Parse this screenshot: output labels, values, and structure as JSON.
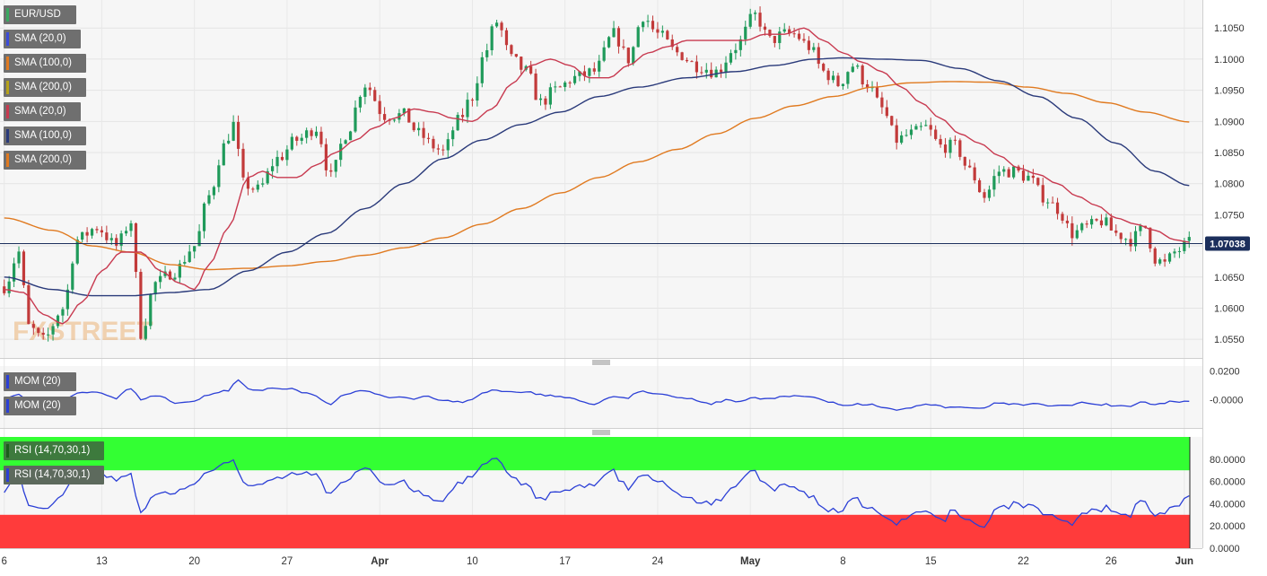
{
  "chart_data": {
    "type": "candlestick",
    "symbol": "EUR/USD",
    "indicators": [
      {
        "label": "SMA (20,0)",
        "color": "#3b4bd8"
      },
      {
        "label": "SMA (100,0)",
        "color": "#e07a20"
      },
      {
        "label": "SMA (200,0)",
        "color": "#b6a21a"
      },
      {
        "label": "SMA (20,0)",
        "color": "#c83a50"
      },
      {
        "label": "SMA (100,0)",
        "color": "#2a3a7a"
      },
      {
        "label": "SMA (200,0)",
        "color": "#e07a20"
      }
    ],
    "price_axis": {
      "ylim": [
        1.052,
        1.1095
      ],
      "ticks": [
        "1.1050",
        "1.1000",
        "1.0950",
        "1.0900",
        "1.0850",
        "1.0800",
        "1.0750",
        "1.0700",
        "1.0650",
        "1.0600",
        "1.0550"
      ]
    },
    "last_price": "1.07038",
    "last_price_value": 1.07038,
    "x_labels": [
      "6",
      "13",
      "20",
      "27",
      "Apr",
      "10",
      "17",
      "24",
      "May",
      "8",
      "15",
      "22",
      "26",
      "Jun"
    ],
    "watermark": "FXSTREET",
    "price_waypoints": [
      [
        0,
        1.0635
      ],
      [
        3,
        1.069
      ],
      [
        5,
        1.057
      ],
      [
        8,
        1.0548
      ],
      [
        12,
        1.06
      ],
      [
        15,
        1.071
      ],
      [
        19,
        1.073
      ],
      [
        23,
        1.07
      ],
      [
        26,
        1.074
      ],
      [
        28,
        1.056
      ],
      [
        31,
        1.064
      ],
      [
        35,
        1.066
      ],
      [
        39,
        1.07
      ],
      [
        42,
        1.078
      ],
      [
        45,
        1.086
      ],
      [
        47,
        1.0895
      ],
      [
        49,
        1.08
      ],
      [
        52,
        1.079
      ],
      [
        56,
        1.084
      ],
      [
        60,
        1.087
      ],
      [
        64,
        1.089
      ],
      [
        67,
        1.081
      ],
      [
        70,
        1.088
      ],
      [
        74,
        1.096
      ],
      [
        78,
        1.091
      ],
      [
        82,
        1.091
      ],
      [
        85,
        1.088
      ],
      [
        88,
        1.086
      ],
      [
        90,
        1.085
      ],
      [
        93,
        1.09
      ],
      [
        96,
        1.094
      ],
      [
        98,
        1.1
      ],
      [
        101,
        1.106
      ],
      [
        104,
        1.1
      ],
      [
        107,
        1.098
      ],
      [
        110,
        1.093
      ],
      [
        113,
        1.095
      ],
      [
        117,
        1.097
      ],
      [
        121,
        1.098
      ],
      [
        125,
        1.104
      ],
      [
        128,
        1.1
      ],
      [
        131,
        1.107
      ],
      [
        134,
        1.104
      ],
      [
        138,
        1.101
      ],
      [
        142,
        1.099
      ],
      [
        146,
        1.098
      ],
      [
        150,
        1.102
      ],
      [
        154,
        1.107
      ],
      [
        157,
        1.103
      ],
      [
        160,
        1.104
      ],
      [
        162,
        1.104
      ],
      [
        165,
        1.102
      ],
      [
        168,
        1.098
      ],
      [
        171,
        1.096
      ],
      [
        174,
        1.099
      ],
      [
        177,
        1.096
      ],
      [
        180,
        1.092
      ],
      [
        183,
        1.087
      ],
      [
        186,
        1.088
      ],
      [
        189,
        1.089
      ],
      [
        192,
        1.086
      ],
      [
        195,
        1.086
      ],
      [
        198,
        1.082
      ],
      [
        201,
        1.078
      ],
      [
        204,
        1.082
      ],
      [
        207,
        1.082
      ],
      [
        210,
        1.081
      ],
      [
        213,
        1.078
      ],
      [
        216,
        1.076
      ],
      [
        219,
        1.072
      ],
      [
        222,
        1.073
      ],
      [
        225,
        1.074
      ],
      [
        228,
        1.072
      ],
      [
        231,
        1.071
      ],
      [
        234,
        1.073
      ],
      [
        236,
        1.068
      ],
      [
        238,
        1.067
      ],
      [
        240,
        1.069
      ],
      [
        243,
        1.0704
      ]
    ],
    "sma20_waypoints": [
      [
        0,
        1.063
      ],
      [
        4,
        1.0625
      ],
      [
        8,
        1.059
      ],
      [
        12,
        1.0575
      ],
      [
        16,
        1.061
      ],
      [
        20,
        1.066
      ],
      [
        24,
        1.069
      ],
      [
        28,
        1.069
      ],
      [
        32,
        1.066
      ],
      [
        36,
        1.064
      ],
      [
        39,
        1.063
      ],
      [
        42,
        1.067
      ],
      [
        46,
        1.073
      ],
      [
        50,
        1.081
      ],
      [
        53,
        1.082
      ],
      [
        56,
        1.081
      ],
      [
        60,
        1.081
      ],
      [
        64,
        1.083
      ],
      [
        68,
        1.085
      ],
      [
        72,
        1.087
      ],
      [
        76,
        1.089
      ],
      [
        80,
        1.0905
      ],
      [
        84,
        1.092
      ],
      [
        88,
        1.0915
      ],
      [
        92,
        1.0905
      ],
      [
        96,
        1.09
      ],
      [
        100,
        1.092
      ],
      [
        104,
        1.096
      ],
      [
        108,
        1.099
      ],
      [
        112,
        1.1
      ],
      [
        116,
        1.099
      ],
      [
        120,
        1.097
      ],
      [
        124,
        1.097
      ],
      [
        128,
        1.099
      ],
      [
        132,
        1.101
      ],
      [
        136,
        1.102
      ],
      [
        140,
        1.103
      ],
      [
        144,
        1.103
      ],
      [
        148,
        1.103
      ],
      [
        152,
        1.103
      ],
      [
        156,
        1.104
      ],
      [
        160,
        1.104
      ],
      [
        164,
        1.105
      ],
      [
        168,
        1.103
      ],
      [
        172,
        1.101
      ],
      [
        176,
        1.0995
      ],
      [
        180,
        1.098
      ],
      [
        184,
        1.0955
      ],
      [
        188,
        1.093
      ],
      [
        192,
        1.0905
      ],
      [
        196,
        1.088
      ],
      [
        200,
        1.0865
      ],
      [
        204,
        1.0845
      ],
      [
        208,
        1.0825
      ],
      [
        212,
        1.0815
      ],
      [
        216,
        1.08
      ],
      [
        220,
        1.078
      ],
      [
        224,
        1.0765
      ],
      [
        228,
        1.0745
      ],
      [
        232,
        1.0735
      ],
      [
        236,
        1.0725
      ],
      [
        240,
        1.071
      ],
      [
        243,
        1.0706
      ]
    ],
    "sma100_waypoints": [
      [
        0,
        1.065
      ],
      [
        10,
        1.063
      ],
      [
        18,
        1.062
      ],
      [
        26,
        1.062
      ],
      [
        34,
        1.0625
      ],
      [
        42,
        1.063
      ],
      [
        50,
        1.066
      ],
      [
        58,
        1.069
      ],
      [
        66,
        1.072
      ],
      [
        74,
        1.076
      ],
      [
        82,
        1.08
      ],
      [
        90,
        1.084
      ],
      [
        98,
        1.087
      ],
      [
        106,
        1.0895
      ],
      [
        114,
        1.0915
      ],
      [
        122,
        1.094
      ],
      [
        130,
        1.0955
      ],
      [
        140,
        1.097
      ],
      [
        150,
        1.098
      ],
      [
        158,
        1.099
      ],
      [
        166,
        1.1
      ],
      [
        172,
        1.1002
      ],
      [
        180,
        1.1
      ],
      [
        188,
        1.0998
      ],
      [
        196,
        1.0985
      ],
      [
        204,
        1.0965
      ],
      [
        212,
        1.094
      ],
      [
        220,
        1.0905
      ],
      [
        228,
        1.0865
      ],
      [
        236,
        1.082
      ],
      [
        243,
        1.0797
      ]
    ],
    "sma200_waypoints": [
      [
        0,
        1.0745
      ],
      [
        10,
        1.0725
      ],
      [
        18,
        1.07
      ],
      [
        26,
        1.069
      ],
      [
        34,
        1.067
      ],
      [
        42,
        1.0662
      ],
      [
        50,
        1.0664
      ],
      [
        58,
        1.0668
      ],
      [
        66,
        1.0675
      ],
      [
        74,
        1.0685
      ],
      [
        82,
        1.0697
      ],
      [
        90,
        1.0713
      ],
      [
        98,
        1.0735
      ],
      [
        106,
        1.076
      ],
      [
        114,
        1.0785
      ],
      [
        122,
        1.081
      ],
      [
        130,
        1.0835
      ],
      [
        138,
        1.0855
      ],
      [
        146,
        1.088
      ],
      [
        154,
        1.0905
      ],
      [
        162,
        1.0925
      ],
      [
        170,
        1.094
      ],
      [
        178,
        1.0955
      ],
      [
        186,
        1.0962
      ],
      [
        194,
        1.0964
      ],
      [
        202,
        1.0963
      ],
      [
        210,
        1.0955
      ],
      [
        218,
        1.0945
      ],
      [
        226,
        1.093
      ],
      [
        234,
        1.0915
      ],
      [
        243,
        1.0899
      ]
    ],
    "mom_panel": {
      "labels": [
        "MOM (20)",
        "MOM (20)"
      ],
      "ticks": [
        "0.0200",
        "-0.0000"
      ],
      "ylim": [
        -0.02,
        0.0235
      ]
    },
    "rsi_panel": {
      "labels": [
        "RSI (14,70,30,1)",
        "RSI (14,70,30,1)"
      ],
      "ticks": [
        "80.0000",
        "60.0000",
        "40.0000",
        "20.0000",
        "0.0000"
      ],
      "ylim": [
        0,
        100
      ],
      "overbought": 70,
      "oversold": 30,
      "overbought_color": "#33ff33",
      "oversold_color": "#ff3b3b"
    }
  }
}
